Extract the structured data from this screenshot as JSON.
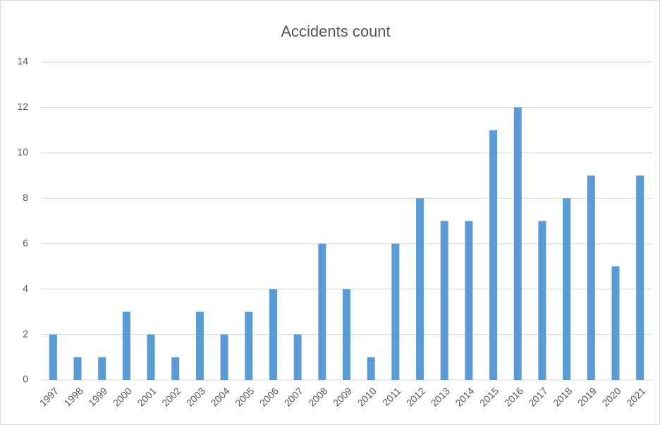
{
  "chart_data": {
    "type": "bar",
    "title": "Accidents count",
    "categories": [
      "1997",
      "1998",
      "1999",
      "2000",
      "2001",
      "2002",
      "2003",
      "2004",
      "2005",
      "2006",
      "2007",
      "2008",
      "2009",
      "2010",
      "2011",
      "2012",
      "2013",
      "2014",
      "2015",
      "2016",
      "2017",
      "2018",
      "2019",
      "2020",
      "2021"
    ],
    "values": [
      2,
      1,
      1,
      3,
      2,
      1,
      3,
      2,
      3,
      4,
      2,
      6,
      4,
      1,
      6,
      8,
      7,
      7,
      11,
      12,
      7,
      8,
      9,
      5,
      9
    ],
    "color": "#5b9bd5",
    "ylim": [
      0,
      14
    ],
    "yticks": [
      0,
      2,
      4,
      6,
      8,
      10,
      12,
      14
    ],
    "grid": true
  }
}
